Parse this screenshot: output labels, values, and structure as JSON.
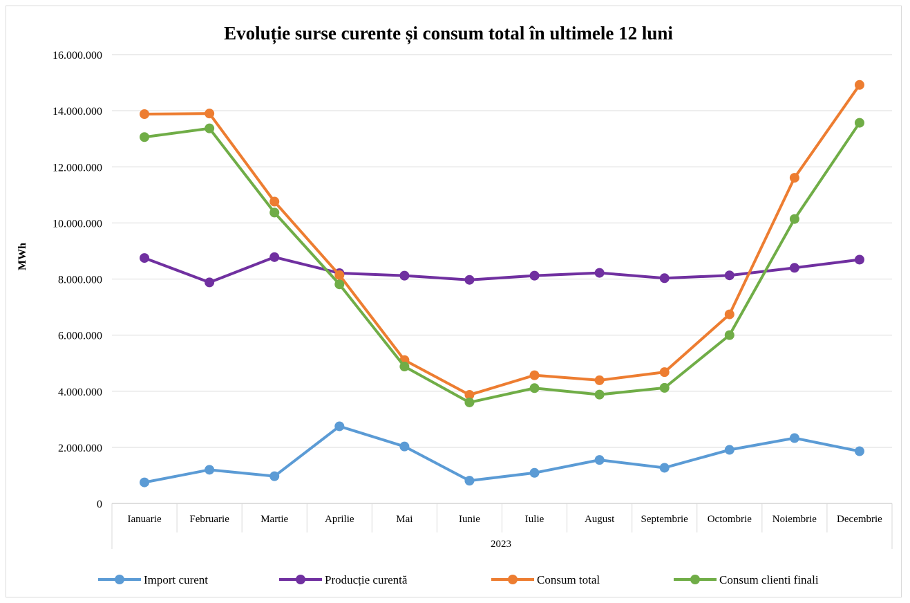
{
  "chart_data": {
    "type": "line",
    "title": "Evoluție surse curente și consum total în ultimele 12 luni",
    "xlabel": "",
    "ylabel": "MWh",
    "group_label": "2023",
    "categories": [
      "Ianuarie",
      "Februarie",
      "Martie",
      "Aprilie",
      "Mai",
      "Iunie",
      "Iulie",
      "August",
      "Septembrie",
      "Octombrie",
      "Noiembrie",
      "Decembrie"
    ],
    "ylim": [
      0,
      16000000
    ],
    "yticks": [
      0,
      2000000,
      4000000,
      6000000,
      8000000,
      10000000,
      12000000,
      14000000,
      16000000
    ],
    "ytick_labels": [
      "0",
      "2.000.000",
      "4.000.000",
      "6.000.000",
      "8.000.000",
      "10.000.000",
      "12.000.000",
      "14.000.000",
      "16.000.000"
    ],
    "grid": true,
    "legend_position": "bottom",
    "series": [
      {
        "name": "Import curent",
        "color": "#5b9bd5",
        "values": [
          750000,
          1200000,
          970000,
          2750000,
          2030000,
          810000,
          1090000,
          1550000,
          1270000,
          1910000,
          2330000,
          1860000
        ]
      },
      {
        "name": "Producție curentă",
        "color": "#7030a0",
        "values": [
          8750000,
          7880000,
          8780000,
          8210000,
          8120000,
          7970000,
          8120000,
          8220000,
          8030000,
          8130000,
          8400000,
          8690000
        ]
      },
      {
        "name": "Consum total",
        "color": "#ed7d31",
        "values": [
          13880000,
          13900000,
          10760000,
          8140000,
          5110000,
          3870000,
          4570000,
          4390000,
          4680000,
          6740000,
          11610000,
          14920000
        ]
      },
      {
        "name": "Consum clienti finali",
        "color": "#70ad47",
        "values": [
          13060000,
          13370000,
          10370000,
          7810000,
          4880000,
          3600000,
          4110000,
          3880000,
          4120000,
          6000000,
          10140000,
          13570000
        ]
      }
    ]
  }
}
